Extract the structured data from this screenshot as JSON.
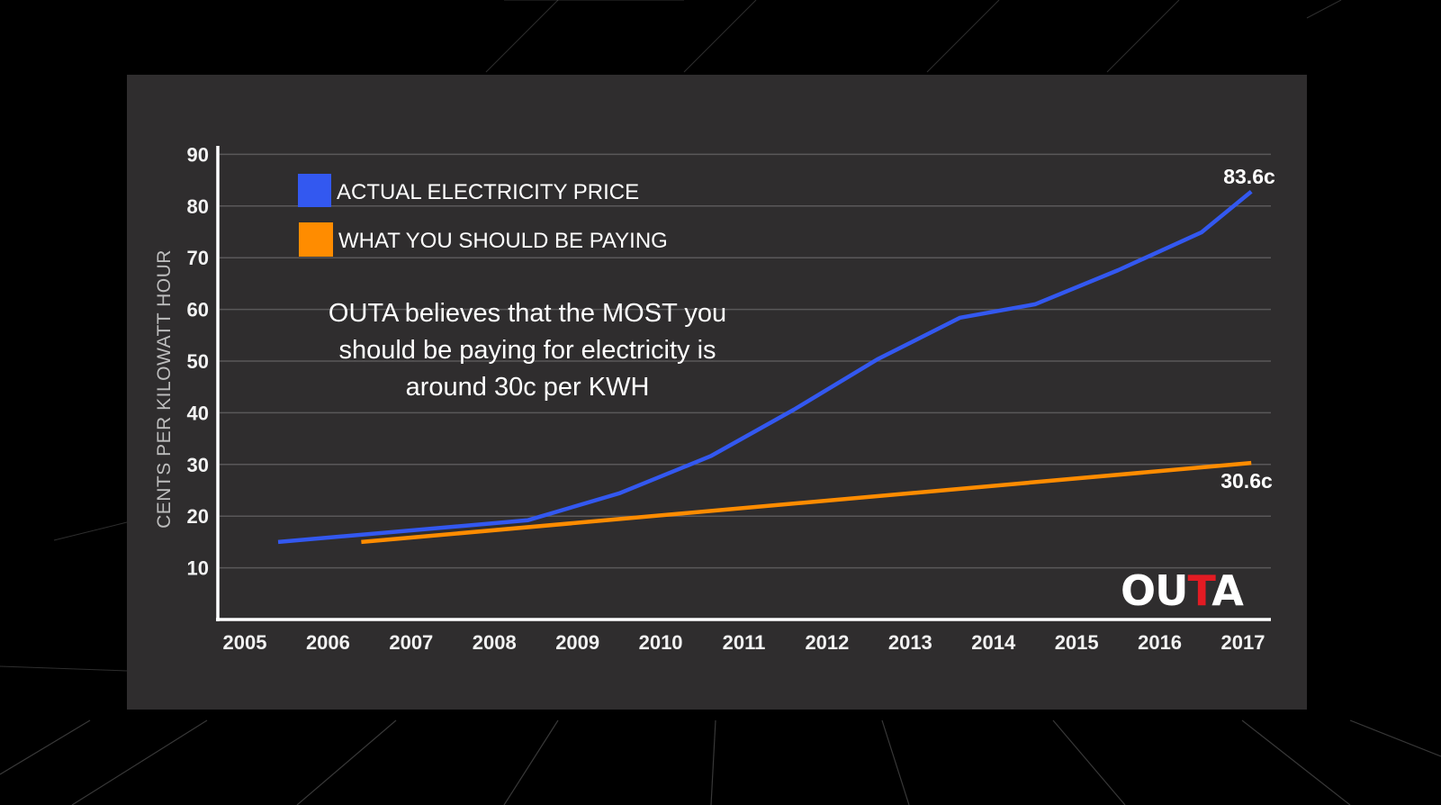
{
  "chart_data": {
    "type": "line",
    "title": "",
    "xlabel": "",
    "ylabel": "CENTS PER KILOWATT HOUR",
    "x_ticks": [
      "2005",
      "2006",
      "2007",
      "2008",
      "2009",
      "2010",
      "2011",
      "2012",
      "2013",
      "2014",
      "2015",
      "2016",
      "2017"
    ],
    "y_ticks": [
      "10",
      "20",
      "30",
      "40",
      "50",
      "60",
      "70",
      "80",
      "90"
    ],
    "xlim": [
      2005,
      2017
    ],
    "ylim": [
      0,
      90
    ],
    "grid": true,
    "legend_position": "top-left",
    "series": [
      {
        "name": "ACTUAL ELECTRICITY PRICE",
        "color": "#3358f0",
        "x": [
          2005.4,
          2008.4,
          2009.5,
          2010.6,
          2011.6,
          2012.6,
          2013.6,
          2014.5,
          2015.5,
          2016.5,
          2017.1
        ],
        "y": [
          15.0,
          19.2,
          24.4,
          31.6,
          40.6,
          50.3,
          58.4,
          61.0,
          67.6,
          74.9,
          82.8
        ],
        "end_label": "83.6c"
      },
      {
        "name": "WHAT YOU SHOULD BE PAYING",
        "color": "#ff8c00",
        "x": [
          2006.4,
          2017.1
        ],
        "y": [
          15.0,
          30.3
        ],
        "end_label": "30.6c"
      }
    ],
    "annotation": [
      "OUTA believes that the MOST you",
      "should be paying for electricity is",
      "around 30c per KWH"
    ]
  },
  "logo": {
    "letters": [
      "O",
      "U",
      "T",
      "A"
    ],
    "accent_index": 2,
    "color": "#ffffff",
    "accent_color": "#e31b23"
  }
}
